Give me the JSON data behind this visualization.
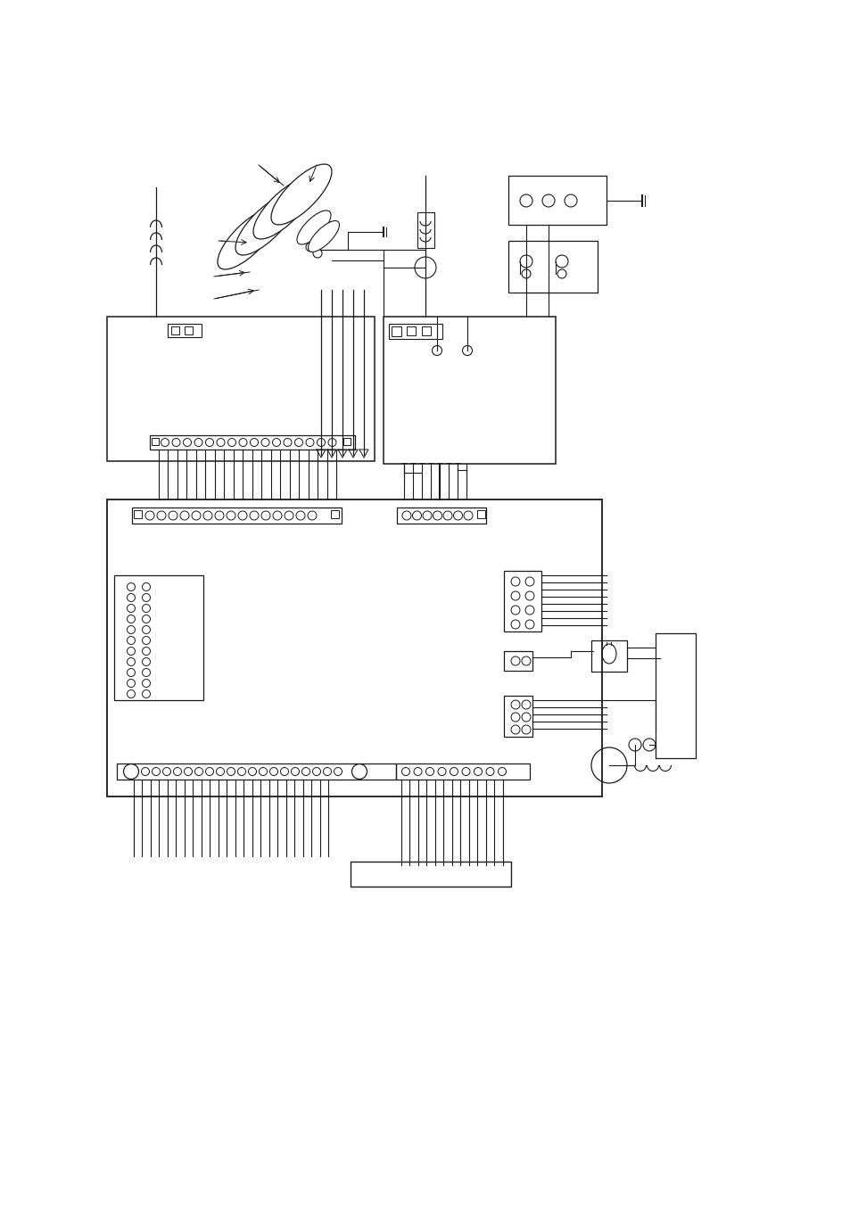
{
  "bg_color": "#ffffff",
  "line_color": "#1a1a1a",
  "fig_width": 9.54,
  "fig_height": 13.51,
  "dpi": 100
}
